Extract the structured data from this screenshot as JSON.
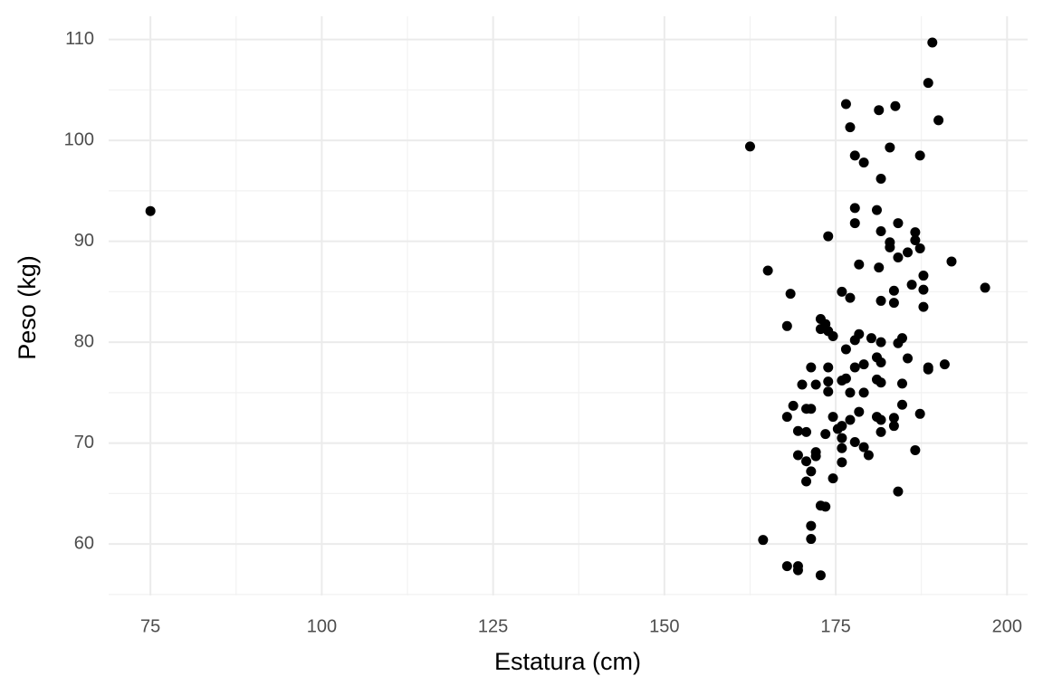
{
  "chart_data": {
    "type": "scatter",
    "x_label": "Estatura (cm)",
    "y_label": "Peso (kg)",
    "color": "#000000",
    "xlim": [
      68.9,
      203
    ],
    "ylim": [
      54.9,
      112.3
    ],
    "xticks": [
      75,
      100,
      125,
      150,
      175,
      200
    ],
    "yticks": [
      60,
      70,
      80,
      90,
      100,
      110
    ],
    "xminorticks": [
      87.5,
      112.5,
      137.5,
      162.5,
      187.5
    ],
    "yminorticks": [
      55,
      65,
      75,
      85,
      95,
      105
    ],
    "grid": true,
    "x": [
      75,
      162.5,
      189.1,
      188.5,
      176.5,
      183.7,
      181.3,
      190.0,
      177.1,
      182.9,
      177.8,
      187.3,
      179.1,
      181.6,
      177.8,
      181.0,
      173.9,
      177.8,
      184.1,
      181.6,
      186.6,
      182.9,
      186.6,
      182.9,
      187.3,
      185.5,
      184.1,
      191.9,
      178.4,
      181.3,
      165.1,
      187.8,
      186.1,
      196.8,
      187.8,
      183.5,
      175.9,
      168.4,
      177.1,
      181.6,
      183.5,
      187.8,
      172.8,
      173.5,
      167.9,
      172.8,
      173.9,
      174.6,
      178.4,
      180.2,
      177.8,
      181.6,
      184.7,
      184.1,
      176.5,
      185.5,
      181.6,
      181.0,
      190.9,
      179.1,
      188.5,
      171.4,
      177.8,
      173.9,
      188.5,
      176.5,
      175.9,
      181.0,
      181.6,
      173.9,
      170.1,
      172.1,
      184.7,
      173.9,
      177.1,
      179.1,
      184.7,
      168.8,
      170.7,
      171.4,
      178.4,
      187.3,
      167.9,
      174.6,
      181.0,
      177.1,
      183.5,
      181.6,
      175.9,
      183.5,
      175.3,
      169.5,
      170.7,
      181.6,
      173.5,
      175.9,
      177.8,
      179.1,
      175.9,
      186.6,
      172.1,
      179.8,
      169.5,
      172.1,
      170.7,
      175.9,
      171.4,
      174.6,
      170.7,
      184.1,
      172.8,
      173.5,
      171.4,
      164.4,
      171.4,
      167.9,
      169.5,
      169.5,
      172.8
    ],
    "values": [
      93.0,
      99.4,
      109.7,
      105.7,
      103.6,
      103.4,
      103.0,
      102.0,
      101.3,
      99.3,
      98.5,
      98.5,
      97.8,
      96.2,
      93.3,
      93.1,
      90.5,
      91.8,
      91.8,
      91.0,
      90.9,
      89.9,
      90.1,
      89.4,
      89.3,
      88.9,
      88.4,
      88.0,
      87.7,
      87.4,
      87.1,
      86.6,
      85.7,
      85.4,
      85.2,
      85.1,
      85.0,
      84.8,
      84.4,
      84.1,
      83.9,
      83.5,
      82.3,
      81.8,
      81.6,
      81.3,
      81.1,
      80.6,
      80.8,
      80.4,
      80.2,
      80.0,
      80.4,
      79.9,
      79.3,
      78.4,
      78.0,
      78.5,
      77.8,
      77.8,
      77.5,
      77.5,
      77.5,
      77.5,
      77.3,
      76.4,
      76.2,
      76.3,
      76.0,
      76.1,
      75.8,
      75.8,
      75.9,
      75.1,
      75.0,
      75.0,
      73.8,
      73.7,
      73.4,
      73.4,
      73.1,
      72.9,
      72.6,
      72.6,
      72.6,
      72.3,
      72.5,
      72.3,
      71.7,
      71.7,
      71.4,
      71.2,
      71.1,
      71.1,
      70.9,
      70.5,
      70.1,
      69.6,
      69.5,
      69.3,
      69.1,
      68.8,
      68.8,
      68.7,
      68.2,
      68.1,
      67.2,
      66.5,
      66.2,
      65.2,
      63.8,
      63.7,
      61.8,
      60.4,
      60.5,
      57.8,
      57.8,
      57.4,
      56.9
    ]
  }
}
